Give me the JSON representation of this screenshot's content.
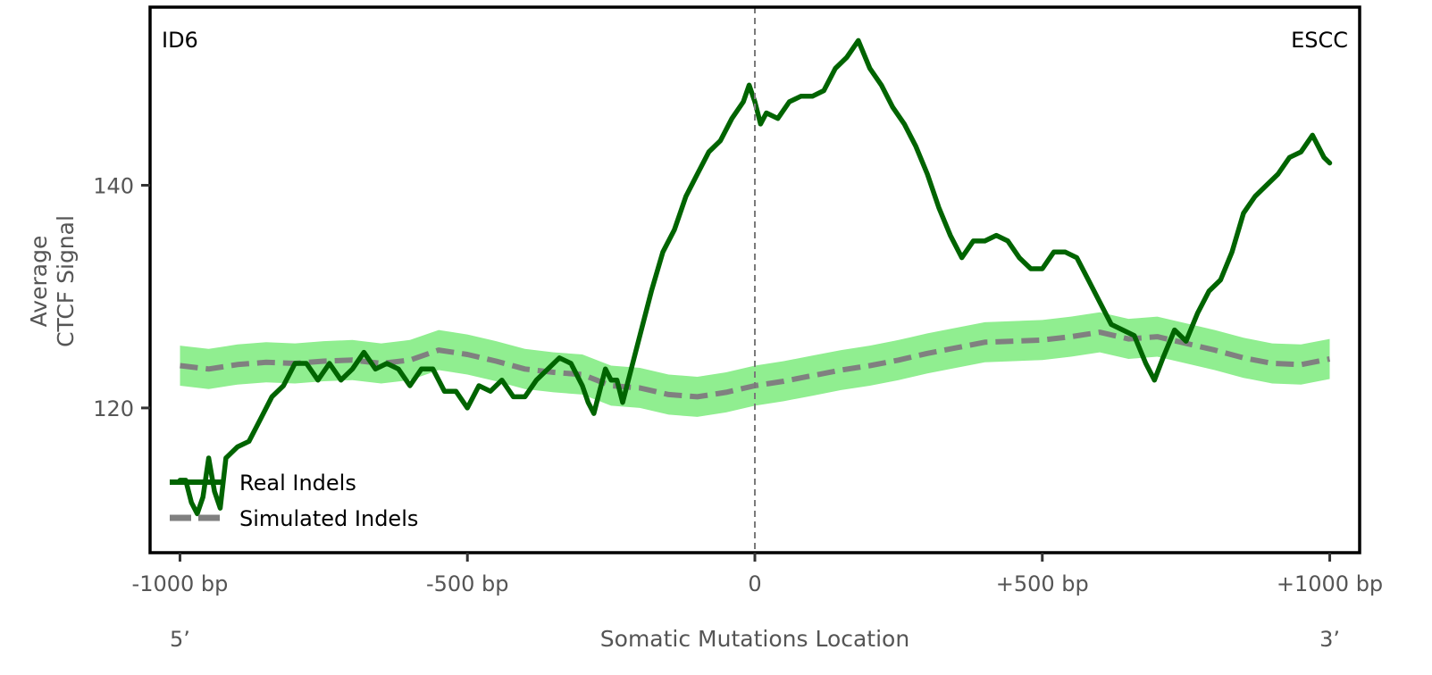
{
  "chart_data": {
    "type": "line",
    "corner_labels": {
      "left": "ID6",
      "right": "ESCC"
    },
    "xlabel": "Somatic Mutations Location",
    "ylabel_lines": [
      "Average",
      "CTCF Signal"
    ],
    "end_labels": {
      "left": "5’",
      "right": "3’"
    },
    "x_ticks": [
      {
        "value": -1000,
        "label": "-1000 bp"
      },
      {
        "value": -500,
        "label": "-500 bp"
      },
      {
        "value": 0,
        "label": "0"
      },
      {
        "value": 500,
        "label": "+500 bp"
      },
      {
        "value": 1000,
        "label": "+1000 bp"
      }
    ],
    "y_ticks": [
      {
        "value": 120,
        "label": "120"
      },
      {
        "value": 140,
        "label": "140"
      }
    ],
    "xlim": [
      -1052,
      1052
    ],
    "ylim": [
      107,
      156
    ],
    "center_line": 0,
    "band_halfwidth": 1.8,
    "legend": {
      "position": "lower-left",
      "entries": [
        {
          "label": "Real Indels",
          "style": "solid",
          "color": "#006400"
        },
        {
          "label": "Simulated Indels",
          "style": "dashed",
          "color": "#808080"
        }
      ]
    },
    "series": [
      {
        "name": "Real Indels",
        "color": "#006400",
        "x": [
          -1000,
          -990,
          -980,
          -970,
          -960,
          -950,
          -940,
          -930,
          -920,
          -900,
          -880,
          -860,
          -840,
          -820,
          -800,
          -780,
          -760,
          -740,
          -720,
          -700,
          -680,
          -660,
          -640,
          -620,
          -600,
          -580,
          -560,
          -540,
          -520,
          -500,
          -480,
          -460,
          -440,
          -420,
          -400,
          -380,
          -360,
          -340,
          -320,
          -300,
          -290,
          -280,
          -270,
          -260,
          -250,
          -240,
          -230,
          -220,
          -200,
          -180,
          -160,
          -140,
          -120,
          -100,
          -80,
          -60,
          -40,
          -20,
          -10,
          0,
          10,
          20,
          40,
          60,
          80,
          100,
          120,
          140,
          160,
          180,
          200,
          220,
          240,
          260,
          280,
          300,
          320,
          340,
          360,
          380,
          400,
          420,
          440,
          460,
          480,
          500,
          520,
          540,
          560,
          580,
          600,
          620,
          640,
          660,
          680,
          695,
          710,
          730,
          750,
          770,
          790,
          810,
          830,
          850,
          870,
          890,
          910,
          930,
          950,
          970,
          990,
          1000
        ],
        "values": [
          113.5,
          113.5,
          111.5,
          110.5,
          112.0,
          115.5,
          112.5,
          111.0,
          115.5,
          116.5,
          117.0,
          119.0,
          121.0,
          122.0,
          124.0,
          124.0,
          122.5,
          124.0,
          122.5,
          123.5,
          125.0,
          123.5,
          124.0,
          123.5,
          122.0,
          123.5,
          123.5,
          121.5,
          121.5,
          120.0,
          122.0,
          121.5,
          122.5,
          121.0,
          121.0,
          122.5,
          123.5,
          124.5,
          124.0,
          122.0,
          120.5,
          119.5,
          121.5,
          123.5,
          122.5,
          122.5,
          120.5,
          122.5,
          126.5,
          130.5,
          134.0,
          136.0,
          139.0,
          141.0,
          143.0,
          144.0,
          146.0,
          147.5,
          149.0,
          147.5,
          145.5,
          146.5,
          146.0,
          147.5,
          148.0,
          148.0,
          148.5,
          150.5,
          151.5,
          153.0,
          150.5,
          149.0,
          147.0,
          145.5,
          143.5,
          141.0,
          138.0,
          135.5,
          133.5,
          135.0,
          135.0,
          135.5,
          135.0,
          133.5,
          132.5,
          132.5,
          134.0,
          134.0,
          133.5,
          131.5,
          129.5,
          127.5,
          127.0,
          126.5,
          124.0,
          122.5,
          124.5,
          127.0,
          126.0,
          128.5,
          130.5,
          131.5,
          134.0,
          137.5,
          139.0,
          140.0,
          141.0,
          142.5,
          143.0,
          144.5,
          142.5,
          142.0
        ]
      },
      {
        "name": "Simulated Indels",
        "color": "#808080",
        "x": [
          -1000,
          -950,
          -900,
          -850,
          -800,
          -750,
          -700,
          -650,
          -600,
          -550,
          -500,
          -450,
          -400,
          -350,
          -300,
          -250,
          -200,
          -150,
          -100,
          -50,
          0,
          50,
          100,
          150,
          200,
          250,
          300,
          350,
          400,
          450,
          500,
          550,
          600,
          650,
          700,
          750,
          800,
          850,
          900,
          950,
          1000
        ],
        "values": [
          123.8,
          123.5,
          123.9,
          124.1,
          124.0,
          124.2,
          124.3,
          124.0,
          124.3,
          125.2,
          124.8,
          124.2,
          123.5,
          123.2,
          123.0,
          122.0,
          121.8,
          121.2,
          121.0,
          121.4,
          122.0,
          122.4,
          122.9,
          123.4,
          123.8,
          124.3,
          124.9,
          125.4,
          125.9,
          126.0,
          126.1,
          126.4,
          126.8,
          126.2,
          126.4,
          125.8,
          125.2,
          124.5,
          124.0,
          123.9,
          124.4
        ]
      }
    ]
  }
}
